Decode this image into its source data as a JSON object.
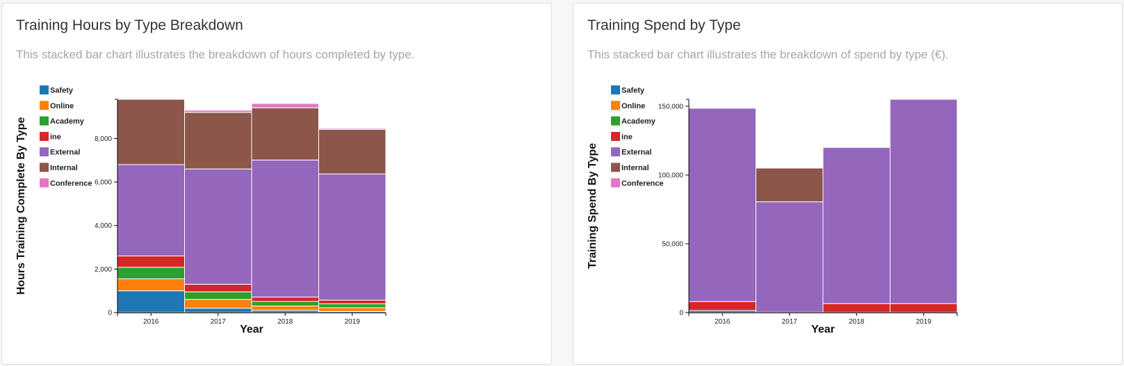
{
  "panels": [
    {
      "title": "Training Hours by Type Breakdown",
      "description": "This stacked bar chart illustrates the breakdown of hours completed by type."
    },
    {
      "title": "Training Spend by Type",
      "description": "This stacked bar chart illustrates the breakdown of spend by type (€)."
    }
  ],
  "colors": {
    "Safety": "#1f77b4",
    "Online": "#ff7f0e",
    "Academy": "#2ca02c",
    "ine": "#d62728",
    "External": "#9467bd",
    "Internal": "#8c564b",
    "Conference": "#e377c2"
  },
  "chart_data": [
    {
      "type": "bar",
      "stacked": true,
      "categories": [
        "2016",
        "2017",
        "2018",
        "2019"
      ],
      "xlabel": "Year",
      "ylabel": "Hours Training Complete By Type",
      "ylim": [
        0,
        9800
      ],
      "yticks": [
        0,
        2000,
        4000,
        6000,
        8000
      ],
      "ytick_labels": [
        "0",
        "2,000",
        "4,000",
        "6,000",
        "8,000"
      ],
      "legend_position": "top-left",
      "series": [
        {
          "name": "Safety",
          "values": [
            1000,
            200,
            100,
            50
          ]
        },
        {
          "name": "Online",
          "values": [
            550,
            400,
            200,
            170
          ]
        },
        {
          "name": "Academy",
          "values": [
            530,
            350,
            210,
            180
          ]
        },
        {
          "name": "ine",
          "values": [
            520,
            350,
            200,
            170
          ]
        },
        {
          "name": "External",
          "values": [
            4200,
            5300,
            6300,
            5800
          ]
        },
        {
          "name": "Internal",
          "values": [
            3000,
            2600,
            2400,
            2050
          ]
        },
        {
          "name": "Conference",
          "values": [
            0,
            100,
            200,
            50
          ]
        }
      ]
    },
    {
      "type": "bar",
      "stacked": true,
      "categories": [
        "2016",
        "2017",
        "2018",
        "2019"
      ],
      "xlabel": "Year",
      "ylabel": "Training Spend By Type",
      "ylim": [
        0,
        155000
      ],
      "yticks": [
        0,
        50000,
        100000,
        150000
      ],
      "ytick_labels": [
        "0",
        "50,000",
        "100,000",
        "150,000"
      ],
      "legend_position": "top-left",
      "series": [
        {
          "name": "Safety",
          "values": [
            1500,
            0,
            0,
            0
          ]
        },
        {
          "name": "Online",
          "values": [
            0,
            0,
            0,
            0
          ]
        },
        {
          "name": "Academy",
          "values": [
            0,
            0,
            0,
            0
          ]
        },
        {
          "name": "ine",
          "values": [
            6500,
            0,
            6500,
            6500
          ]
        },
        {
          "name": "External",
          "values": [
            140500,
            80500,
            113500,
            148500
          ]
        },
        {
          "name": "Internal",
          "values": [
            0,
            24500,
            0,
            0
          ]
        },
        {
          "name": "Conference",
          "values": [
            0,
            0,
            0,
            0
          ]
        }
      ]
    }
  ]
}
